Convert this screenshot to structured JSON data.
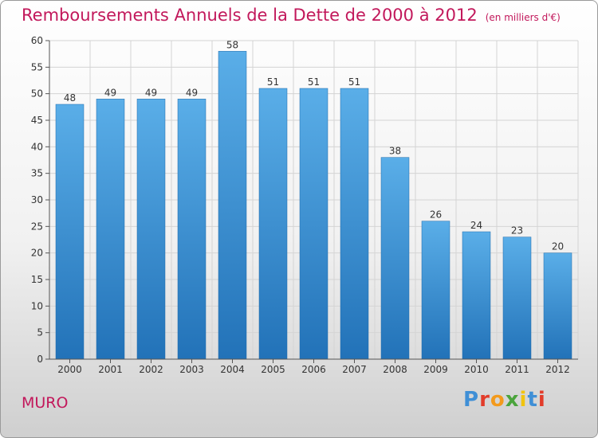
{
  "chart_data": {
    "type": "bar",
    "title": "Remboursements Annuels de la Dette de 2000 à 2012",
    "subtitle": "(en milliers d'€)",
    "categories": [
      "2000",
      "2001",
      "2002",
      "2003",
      "2004",
      "2005",
      "2006",
      "2007",
      "2008",
      "2009",
      "2010",
      "2011",
      "2012"
    ],
    "values": [
      48,
      49,
      49,
      49,
      58,
      51,
      51,
      51,
      38,
      26,
      24,
      23,
      20
    ],
    "ylim": [
      0,
      60
    ],
    "yticks": [
      0,
      5,
      10,
      15,
      20,
      25,
      30,
      35,
      40,
      45,
      50,
      55,
      60
    ],
    "grid": true,
    "bar_color_top": "#5aaee8",
    "bar_color_bottom": "#2272b8"
  },
  "location": "MURO",
  "logo": {
    "letters": [
      "P",
      "r",
      "o",
      "x",
      "i",
      "t",
      "i"
    ]
  }
}
